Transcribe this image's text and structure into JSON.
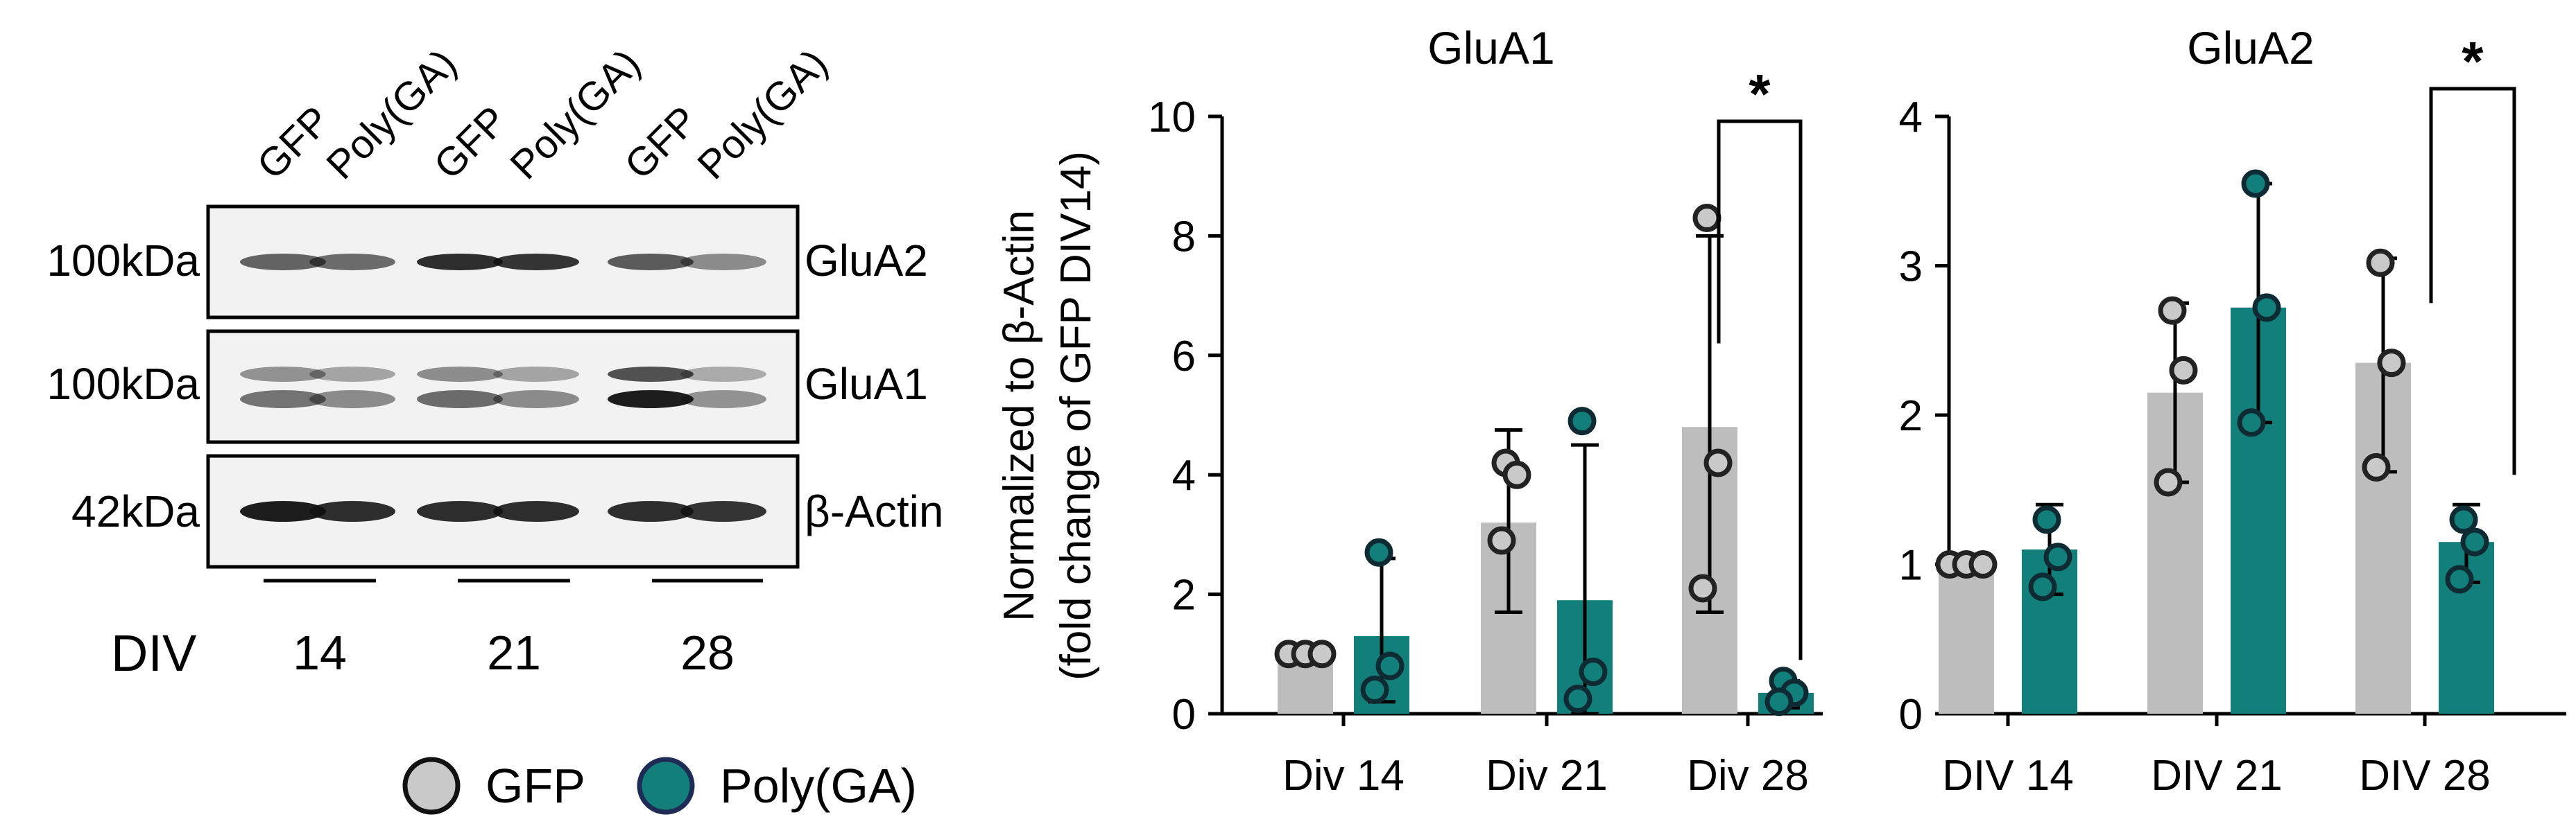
{
  "blot": {
    "lane_labels": [
      "GFP",
      "Poly(GA)",
      "GFP",
      "Poly(GA)",
      "GFP",
      "Poly(GA)"
    ],
    "panels": [
      {
        "size": "100kDa",
        "protein": "GluA2",
        "bands": [
          0.55,
          0.5,
          0.9,
          0.85,
          0.6,
          0.3
        ]
      },
      {
        "size": "100kDa",
        "protein": "GluA1",
        "bands": [
          0.45,
          0.3,
          0.5,
          0.3,
          1.0,
          0.25
        ]
      },
      {
        "size": "42kDa",
        "protein": "β-Actin",
        "bands": [
          1.0,
          0.9,
          0.9,
          0.9,
          0.9,
          0.85
        ]
      }
    ],
    "div_label": "DIV",
    "div_values": [
      "14",
      "21",
      "28"
    ]
  },
  "legend": {
    "gfp": "GFP",
    "polyga": "Poly(GA)"
  },
  "colors": {
    "gfp": "#bdbdbd",
    "polyga": "#137f7a",
    "dot_gfp": "#c9c9c9",
    "dot_polyga": "#137f7a"
  },
  "chart_data": [
    {
      "type": "bar",
      "title": "GluA1",
      "ylabel_line1": "Normalized to β-Actin",
      "ylabel_line2": "(fold change of GFP DIV14)",
      "categories": [
        "Div 14",
        "Div 21",
        "Div 28"
      ],
      "ylim": [
        0,
        10
      ],
      "yticks": [
        0,
        2,
        4,
        6,
        8,
        10
      ],
      "series": [
        {
          "name": "GFP",
          "values": [
            1.0,
            3.2,
            4.8
          ],
          "err_low": [
            1.0,
            1.7,
            1.7
          ],
          "err_high": [
            1.0,
            4.75,
            8.0
          ],
          "points": [
            [
              1.0,
              1.0,
              1.0
            ],
            [
              4.2,
              4.0,
              2.9
            ],
            [
              8.3,
              4.2,
              2.1
            ]
          ]
        },
        {
          "name": "Poly(GA)",
          "values": [
            1.3,
            1.9,
            0.35
          ],
          "err_low": [
            0.2,
            0.0,
            0.1
          ],
          "err_high": [
            2.6,
            4.5,
            0.55
          ],
          "points": [
            [
              2.7,
              0.8,
              0.4
            ],
            [
              4.9,
              0.7,
              0.25
            ],
            [
              0.55,
              0.35,
              0.2
            ]
          ]
        }
      ],
      "significance": {
        "label": "*",
        "category_index": 2,
        "y": 9.6
      }
    },
    {
      "type": "bar",
      "title": "GluA2",
      "categories": [
        "DIV 14",
        "DIV 21",
        "DIV 28"
      ],
      "ylim": [
        0,
        4
      ],
      "yticks": [
        0,
        1,
        2,
        3,
        4
      ],
      "series": [
        {
          "name": "GFP",
          "values": [
            1.0,
            2.15,
            2.35
          ],
          "err_low": [
            1.0,
            1.55,
            1.62
          ],
          "err_high": [
            1.0,
            2.75,
            3.05
          ],
          "points": [
            [
              1.0,
              1.0,
              1.0
            ],
            [
              2.7,
              2.3,
              1.55
            ],
            [
              3.02,
              2.35,
              1.65
            ]
          ]
        },
        {
          "name": "Poly(GA)",
          "values": [
            1.1,
            2.72,
            1.15
          ],
          "err_low": [
            0.8,
            1.95,
            0.88
          ],
          "err_high": [
            1.4,
            3.55,
            1.4
          ],
          "points": [
            [
              1.3,
              1.05,
              0.85
            ],
            [
              3.55,
              2.72,
              1.95
            ],
            [
              1.3,
              1.15,
              0.9
            ]
          ]
        }
      ],
      "significance": {
        "label": "*",
        "category_index": 2,
        "y": 4.2
      }
    }
  ]
}
